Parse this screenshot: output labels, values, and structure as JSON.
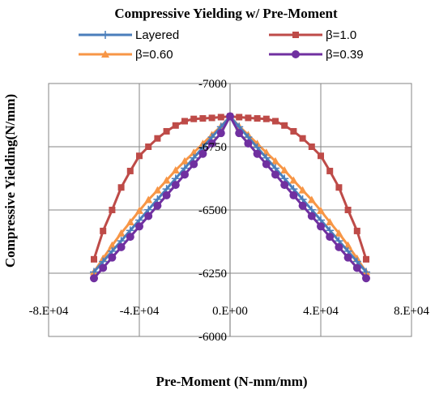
{
  "chart_data": {
    "type": "line",
    "title": "Compressive Yielding w/ Pre-Moment",
    "xlabel": "Pre-Moment (N-mm/mm)",
    "ylabel": "Compressive Yielding(N/mm)",
    "xlim": [
      -80000,
      80000
    ],
    "ylim": [
      -7000,
      -6000
    ],
    "y_reversed": true,
    "x_ticks": [
      -80000,
      -40000,
      0,
      40000,
      80000
    ],
    "x_tick_labels": [
      "-8.E+04",
      "-4.E+04",
      "0.E+00",
      "4.E+04",
      "8.E+04"
    ],
    "y_ticks": [
      -7000,
      -6750,
      -6500,
      -6250,
      -6000
    ],
    "y_tick_labels": [
      "-7000",
      "-6750",
      "-6500",
      "-6250",
      "-6000"
    ],
    "grid": true,
    "legend_position": "top",
    "series": [
      {
        "name": "Layered",
        "color": "#4a7ebb",
        "marker": "plus",
        "x": [
          -60000,
          -56000,
          -52000,
          -48000,
          -44000,
          -40000,
          -36000,
          -32000,
          -28000,
          -24000,
          -20000,
          -16000,
          -12000,
          -8000,
          -4000,
          0,
          4000,
          8000,
          12000,
          16000,
          20000,
          24000,
          28000,
          32000,
          36000,
          40000,
          44000,
          48000,
          52000,
          56000,
          60000
        ],
        "y": [
          -6255,
          -6296,
          -6337,
          -6378,
          -6419,
          -6460,
          -6501,
          -6542,
          -6583,
          -6624,
          -6665,
          -6706,
          -6747,
          -6788,
          -6829,
          -6870,
          -6829,
          -6788,
          -6747,
          -6706,
          -6665,
          -6624,
          -6583,
          -6542,
          -6501,
          -6460,
          -6419,
          -6378,
          -6337,
          -6296,
          -6255
        ]
      },
      {
        "name": "β=1.0",
        "color": "#be4b48",
        "marker": "square",
        "x": [
          -60000,
          -56000,
          -52000,
          -48000,
          -44000,
          -40000,
          -36000,
          -32000,
          -28000,
          -24000,
          -20000,
          -16000,
          -12000,
          -8000,
          -4000,
          0,
          4000,
          8000,
          12000,
          16000,
          20000,
          24000,
          28000,
          32000,
          36000,
          40000,
          44000,
          48000,
          52000,
          56000,
          60000
        ],
        "y": [
          -6305,
          -6417,
          -6500,
          -6589,
          -6654,
          -6714,
          -6750,
          -6783,
          -6811,
          -6834,
          -6851,
          -6860,
          -6862,
          -6864,
          -6867,
          -6870,
          -6867,
          -6864,
          -6862,
          -6860,
          -6851,
          -6834,
          -6811,
          -6783,
          -6750,
          -6714,
          -6654,
          -6589,
          -6500,
          -6417,
          -6305
        ]
      },
      {
        "name": "β=0.60",
        "color": "#f79646",
        "marker": "triangle",
        "x": [
          -60000,
          -56000,
          -52000,
          -48000,
          -44000,
          -40000,
          -36000,
          -32000,
          -28000,
          -24000,
          -20000,
          -16000,
          -12000,
          -8000,
          -4000,
          0,
          4000,
          8000,
          12000,
          16000,
          20000,
          24000,
          28000,
          32000,
          36000,
          40000,
          44000,
          48000,
          52000,
          56000,
          60000
        ],
        "y": [
          -6255,
          -6308,
          -6360,
          -6408,
          -6452,
          -6497,
          -6540,
          -6578,
          -6617,
          -6657,
          -6693,
          -6727,
          -6762,
          -6797,
          -6831,
          -6870,
          -6831,
          -6797,
          -6762,
          -6727,
          -6693,
          -6657,
          -6617,
          -6578,
          -6540,
          -6497,
          -6452,
          -6408,
          -6360,
          -6308,
          -6255
        ]
      },
      {
        "name": "β=0.39",
        "color": "#7030a0",
        "marker": "circle",
        "x": [
          -60000,
          -56000,
          -52000,
          -48000,
          -44000,
          -40000,
          -36000,
          -32000,
          -28000,
          -24000,
          -20000,
          -16000,
          -12000,
          -8000,
          -4000,
          0,
          4000,
          8000,
          12000,
          16000,
          20000,
          24000,
          28000,
          32000,
          36000,
          40000,
          44000,
          48000,
          52000,
          56000,
          60000
        ],
        "y": [
          -6230,
          -6271,
          -6312,
          -6353,
          -6394,
          -6435,
          -6476,
          -6517,
          -6558,
          -6599,
          -6640,
          -6681,
          -6722,
          -6763,
          -6804,
          -6870,
          -6804,
          -6763,
          -6722,
          -6681,
          -6640,
          -6599,
          -6558,
          -6517,
          -6476,
          -6435,
          -6394,
          -6353,
          -6312,
          -6271,
          -6230
        ]
      }
    ]
  }
}
